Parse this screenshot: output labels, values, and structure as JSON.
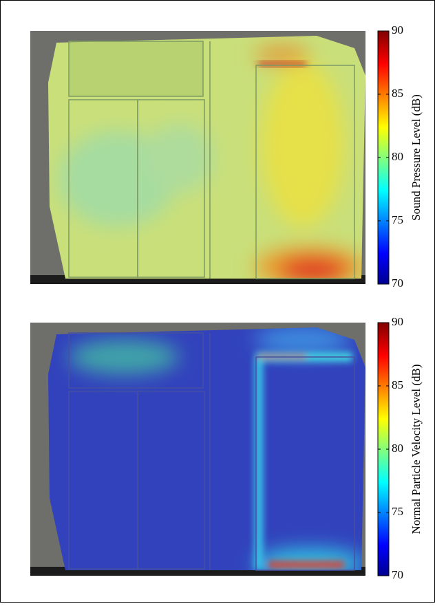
{
  "chart_data": [
    {
      "type": "heatmap",
      "colorbar_label": "Sound Pressure Level (dB)",
      "clim": [
        70,
        90
      ],
      "cticks": [
        70,
        75,
        80,
        85,
        90
      ]
    },
    {
      "type": "heatmap",
      "colorbar_label": "Normal Particle Velocity Level (dB)",
      "clim": [
        70,
        90
      ],
      "cticks": [
        70,
        75,
        80,
        85,
        90
      ]
    }
  ]
}
